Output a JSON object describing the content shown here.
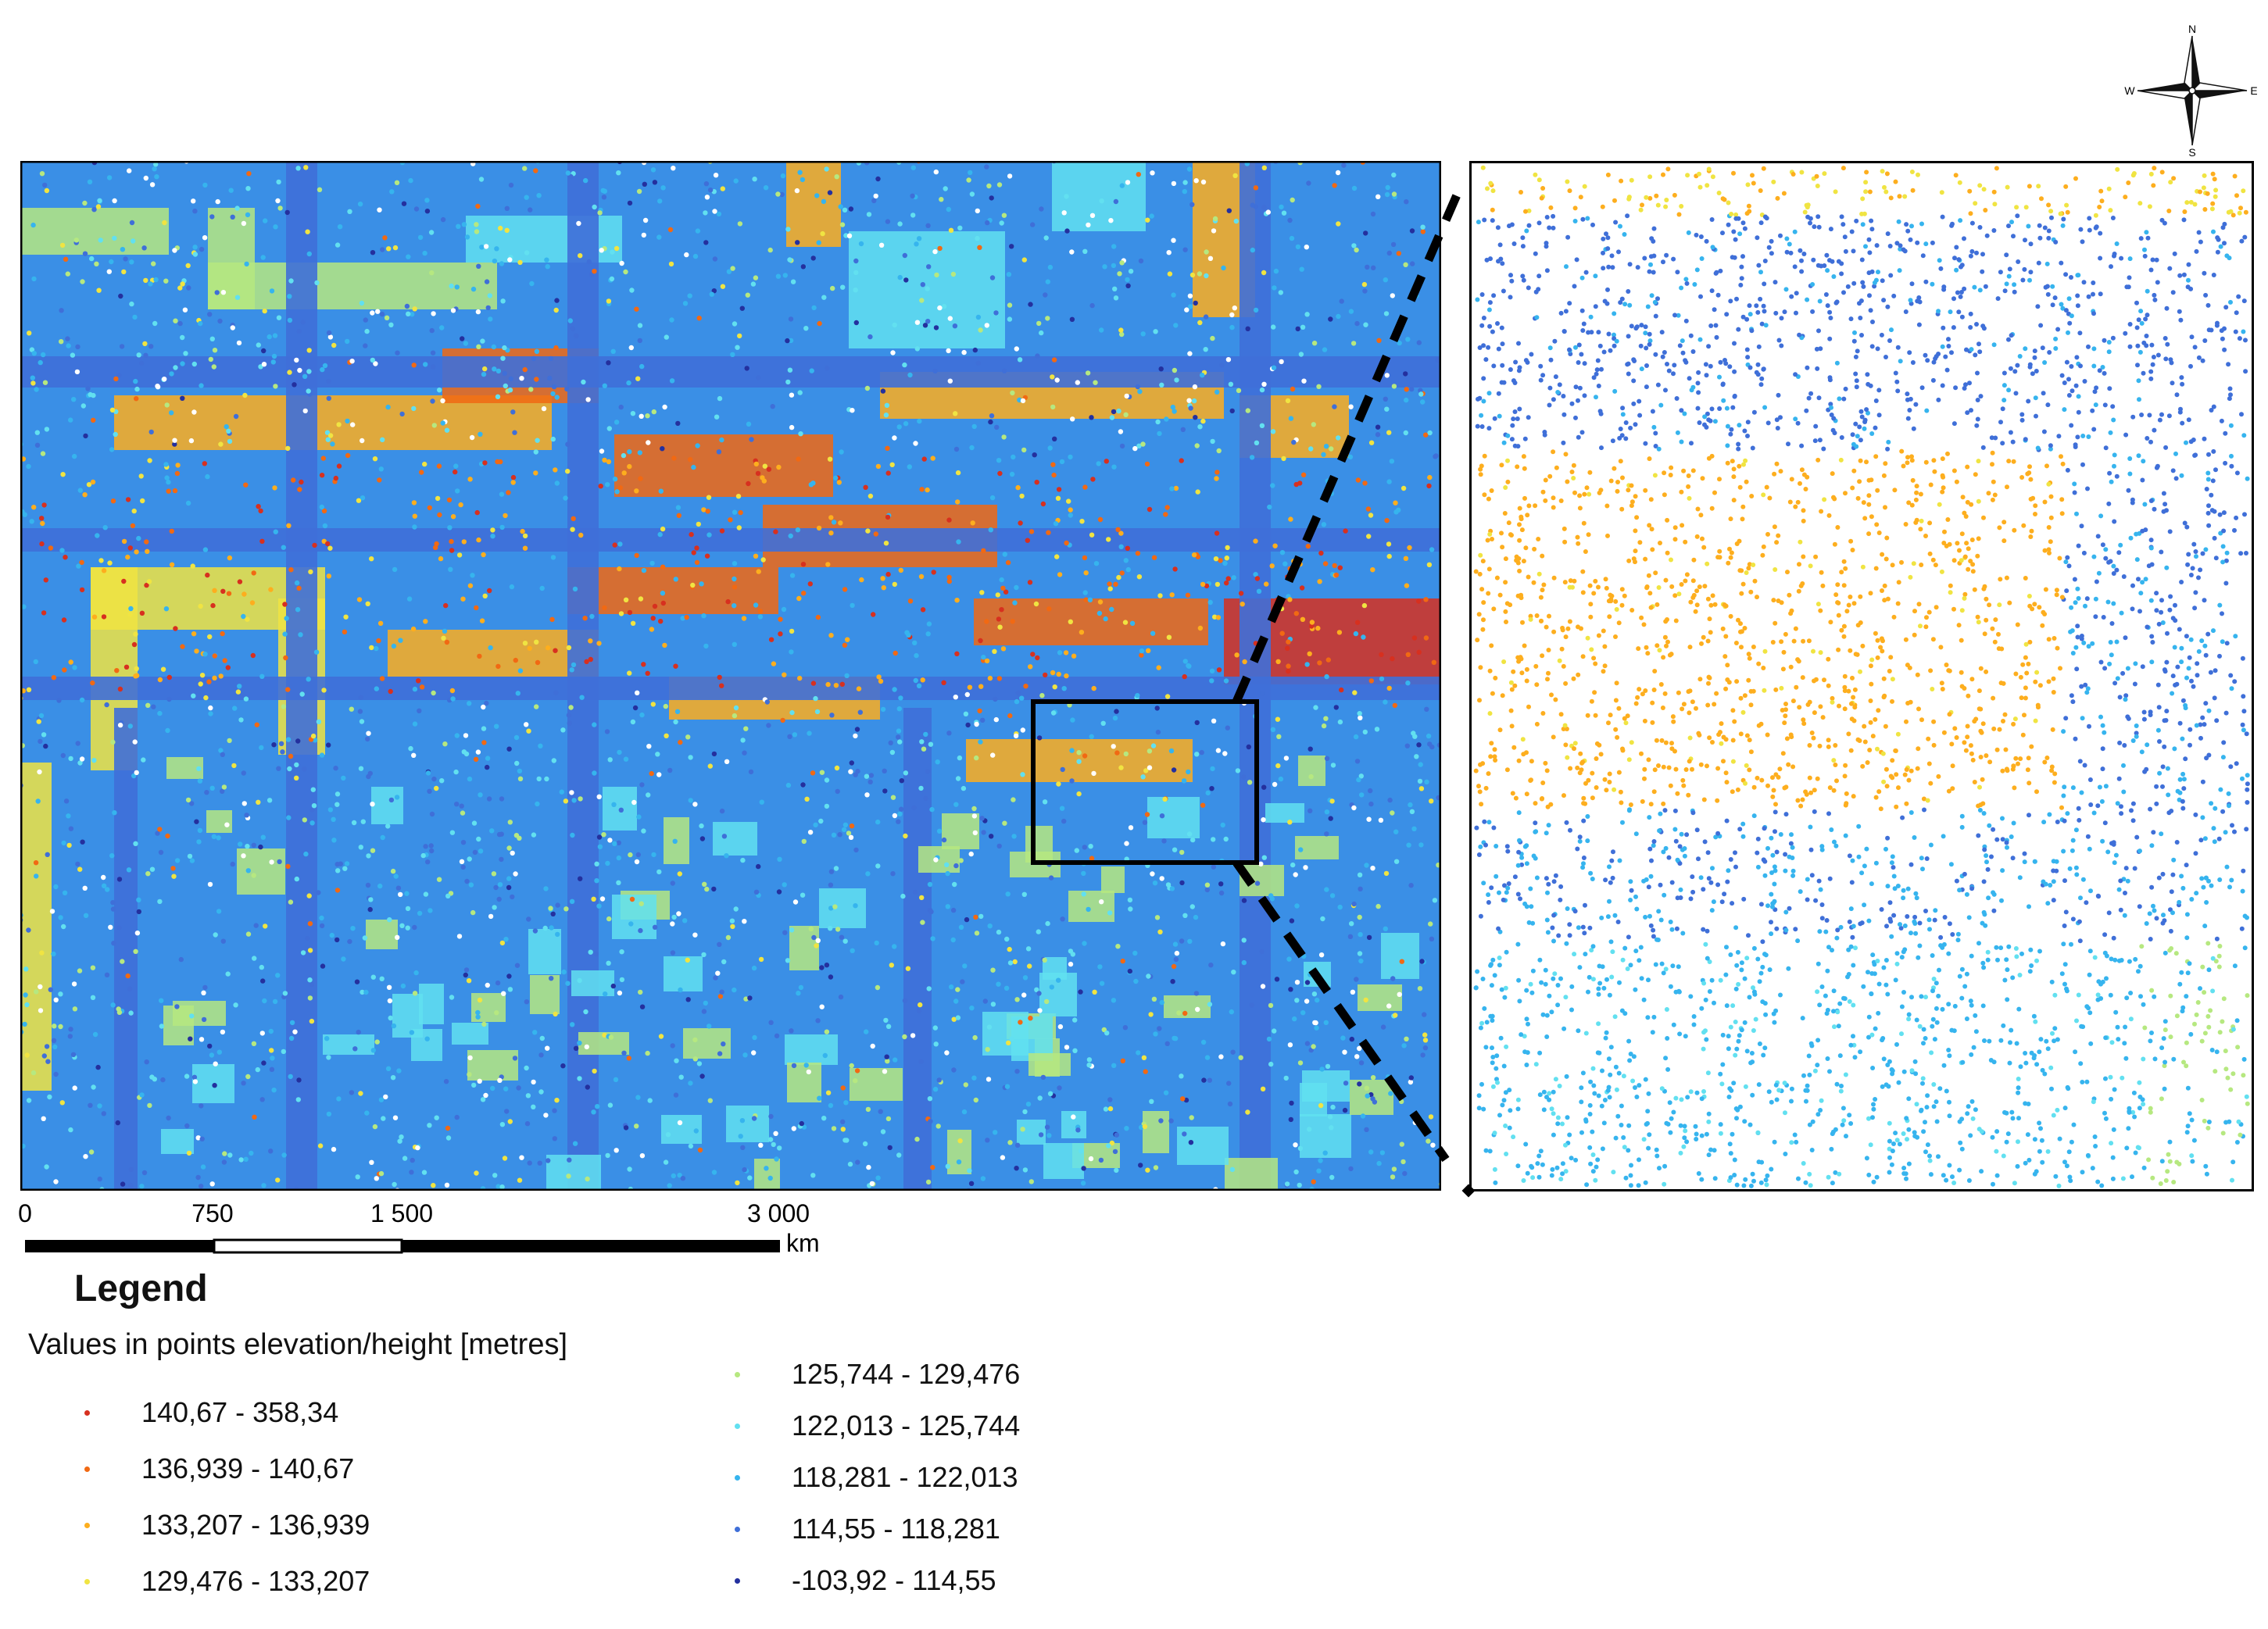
{
  "map": {
    "legend": {
      "title": "Legend",
      "subtitle": "Values in points elevation/height [metres]",
      "classes": [
        {
          "label": "140,67 - 358,34",
          "color": "#d7301f"
        },
        {
          "label": "136,939 - 140,67",
          "color": "#f16913"
        },
        {
          "label": "133,207 - 136,939",
          "color": "#fdae1e"
        },
        {
          "label": "129,476 - 133,207",
          "color": "#f0e442"
        },
        {
          "label": "125,744 - 129,476",
          "color": "#b6e880"
        },
        {
          "label": "122,013 - 125,744",
          "color": "#62e0f0"
        },
        {
          "label": "118,281 - 122,013",
          "color": "#36b4ee"
        },
        {
          "label": "114,55 - 118,281",
          "color": "#3f6fd8"
        },
        {
          "label": "-103,92 - 114,55",
          "color": "#24309e"
        }
      ]
    },
    "scale_bar": {
      "ticks": [
        "0",
        "750",
        "1 500",
        "3 000"
      ],
      "unit": "km"
    },
    "north_arrow": {
      "icon": "compass-rose-icon",
      "labels": {
        "n": "N",
        "s": "S",
        "e": "E",
        "w": "W"
      }
    }
  }
}
